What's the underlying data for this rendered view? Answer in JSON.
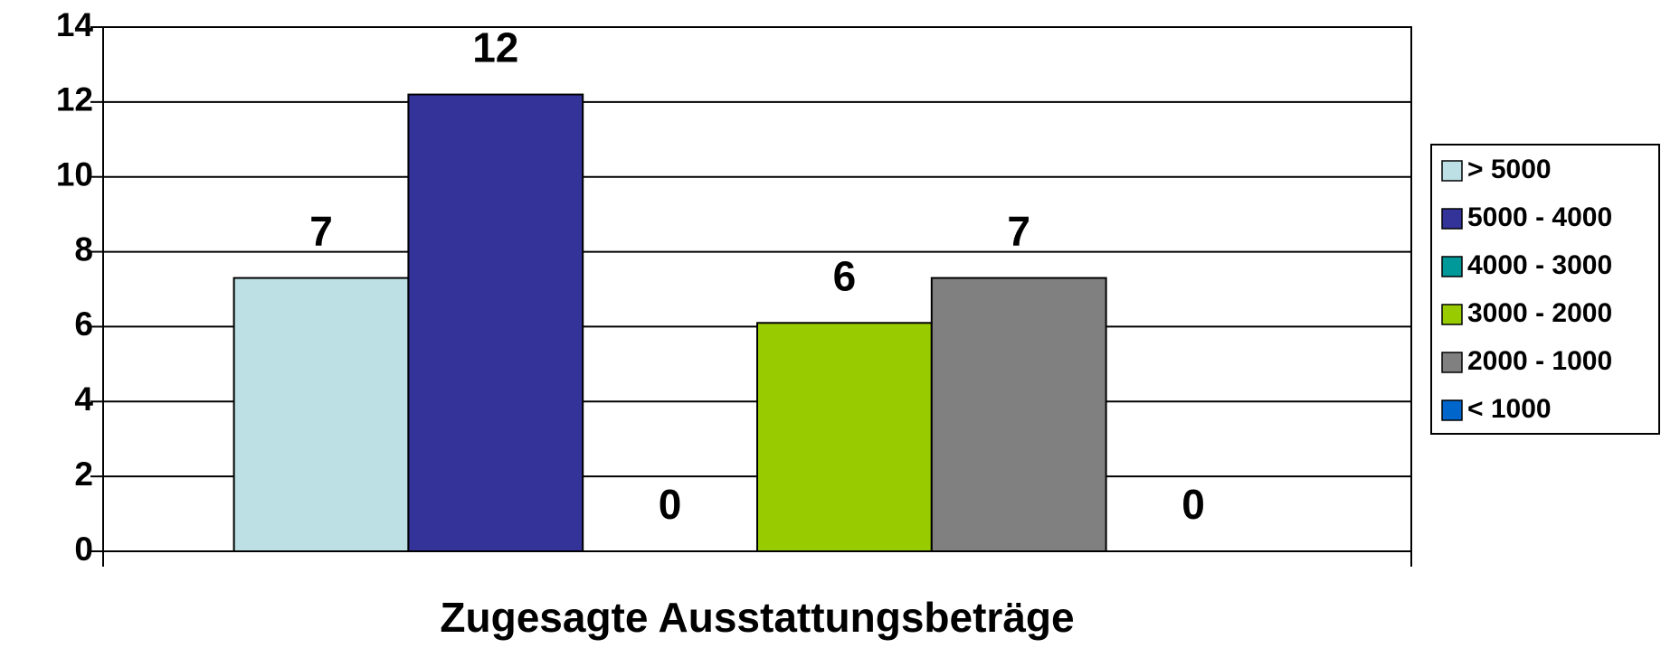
{
  "chart_data": {
    "type": "bar",
    "x_label": "Zugesagte Ausstattungsbeträge",
    "categories": [
      null
    ],
    "series": [
      {
        "name": "> 5000",
        "color": "#bce0e3",
        "values": [
          7.3
        ],
        "value_labels": [
          "7"
        ]
      },
      {
        "name": "5000 - 4000",
        "color": "#333399",
        "values": [
          12.2
        ],
        "value_labels": [
          "12"
        ]
      },
      {
        "name": "4000 - 3000",
        "color": "#009999",
        "values": [
          0
        ],
        "value_labels": [
          "0"
        ]
      },
      {
        "name": "3000 - 2000",
        "color": "#99cc00",
        "values": [
          6.1
        ],
        "value_labels": [
          "6"
        ]
      },
      {
        "name": "2000 - 1000",
        "color": "#808080",
        "values": [
          7.3
        ],
        "value_labels": [
          "7"
        ]
      },
      {
        "name": "< 1000",
        "color": "#0066cc",
        "values": [
          0
        ],
        "value_labels": [
          "0"
        ]
      }
    ],
    "ylim": [
      0,
      14
    ],
    "yticks": [
      0,
      2,
      4,
      6,
      8,
      10,
      12,
      14
    ],
    "grid": true,
    "legend": "right"
  }
}
